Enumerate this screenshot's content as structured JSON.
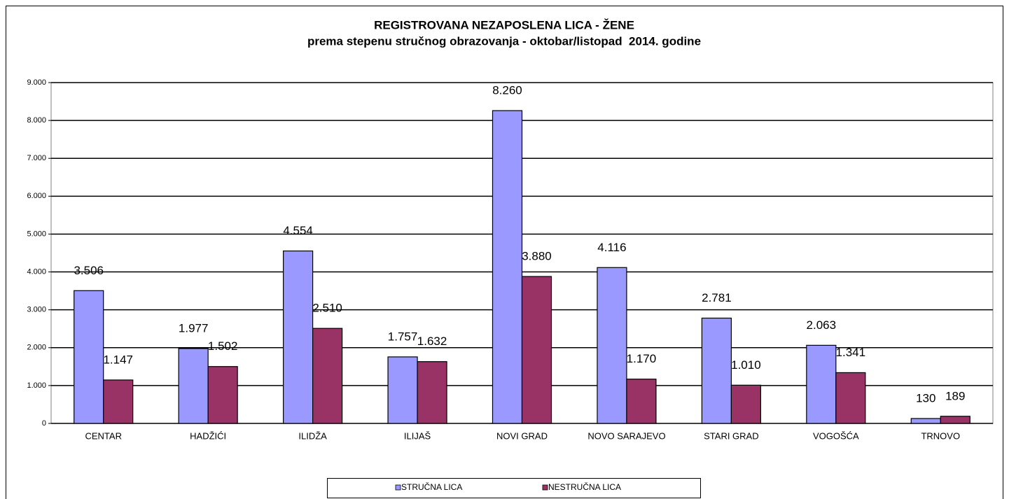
{
  "chart_data": {
    "type": "bar",
    "title": "REGISTROVANA NEZAPOSLENA LICA - ŽENE",
    "subtitle": "prema stepenu stručnog obrazovanja - oktobar/listopad  2014. godine",
    "categories": [
      "CENTAR",
      "HADŽIĆI",
      "ILIDŽA",
      "ILIJAŠ",
      "NOVI GRAD",
      "NOVO SARAJEVO",
      "STARI GRAD",
      "VOGOŠĆA",
      "TRNOVO"
    ],
    "series": [
      {
        "name": "STRUČNA LICA",
        "color": "#9999ff",
        "values": [
          3506,
          1977,
          4554,
          1757,
          8260,
          4116,
          2781,
          2063,
          130
        ],
        "value_labels": [
          "3.506",
          "1.977",
          "4.554",
          "1.757",
          "8.260",
          "4.116",
          "2.781",
          "2.063",
          "130"
        ]
      },
      {
        "name": "NESTRUČNA LICA",
        "color": "#993366",
        "values": [
          1147,
          1502,
          2510,
          1632,
          3880,
          1170,
          1010,
          1341,
          189
        ],
        "value_labels": [
          "1.147",
          "1.502",
          "2.510",
          "1.632",
          "3.880",
          "1.170",
          "1.010",
          "1.341",
          "189"
        ]
      }
    ],
    "ylim": [
      0,
      9000
    ],
    "yticks": [
      0,
      {
        "value": 1000,
        "label": "1.000"
      },
      {
        "value": 2000,
        "label": "2.000"
      },
      {
        "value": 3000,
        "label": "3.000"
      },
      {
        "value": 4000,
        "label": "4.000"
      },
      {
        "value": 5000,
        "label": "5.000"
      },
      {
        "value": 6000,
        "label": "6.000"
      },
      {
        "value": 7000,
        "label": "7.000"
      },
      {
        "value": 8000,
        "label": "8.000"
      },
      {
        "value": 9000,
        "label": "9.000"
      }
    ],
    "grid": true,
    "legend": "bottom"
  }
}
